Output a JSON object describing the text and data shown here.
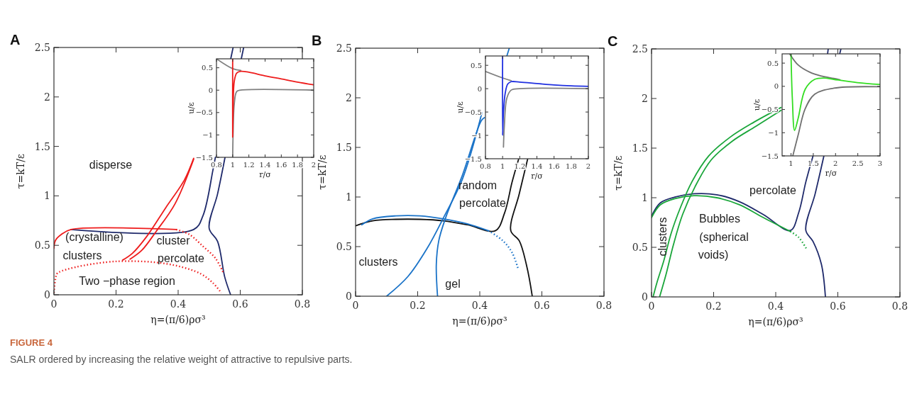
{
  "chart_data": [
    {
      "type": "line",
      "title": "A",
      "xlabel": "η=(π/6)ρσ³",
      "ylabel": "τ=kT/ε",
      "xlim": [
        0,
        0.8
      ],
      "ylim": [
        0,
        2.5
      ],
      "xticks": [
        0,
        0.2,
        0.4,
        0.6,
        0.8
      ],
      "yticks": [
        0,
        0.5,
        1,
        1.5,
        2,
        2.5
      ],
      "grid": false,
      "series": [
        {
          "color": "#1f2a6b",
          "x": [
            0.055,
            0.45,
            0.48,
            0.512,
            0.52,
            null,
            0.569,
            0.577
          ],
          "values": [
            0.66,
            0.66,
            0.8,
            1.26,
            1.39,
            null,
            2.38,
            2.5
          ]
        },
        {
          "color": "#1f2a6b",
          "x": [
            0.611,
            0.603,
            null,
            0.551,
            0.527,
            0.5,
            0.527,
            0.55,
            0.569
          ],
          "values": [
            2.5,
            2.38,
            null,
            1.39,
            1.02,
            0.67,
            0.54,
            0.18,
            0
          ]
        },
        {
          "color": "#ee1c1c",
          "x": [
            0,
            0.005,
            0.024,
            0.055,
            0.394
          ],
          "values": [
            0.47,
            0.55,
            0.61,
            0.66,
            0.66
          ]
        },
        {
          "color": "#ee1c1c",
          "line_style": "dotted",
          "x": [
            0.394,
            0.436,
            0.48,
            0.52,
            0.546
          ],
          "values": [
            0.66,
            0.61,
            0.49,
            0.37,
            0.22
          ]
        },
        {
          "color": "#ee1c1c",
          "line_style": "dotted",
          "x": [
            0,
            0.009,
            0.017,
            0.07,
            0.169,
            0.23,
            0.32,
            0.4,
            0.474,
            0.512,
            0.539
          ],
          "values": [
            0.02,
            0.21,
            0.23,
            0.28,
            0.33,
            0.34,
            0.33,
            0.29,
            0.21,
            0.12,
            0.02
          ]
        },
        {
          "color": "#ee1c1c",
          "x": [
            0.221,
            0.253,
            0.299,
            0.36,
            0.42,
            0.45
          ],
          "values": [
            0.35,
            0.42,
            0.59,
            0.88,
            1.16,
            1.38
          ]
        },
        {
          "color": "#ee1c1c",
          "x": [
            0.245,
            0.283,
            0.329,
            0.39,
            0.45
          ],
          "values": [
            0.36,
            0.45,
            0.64,
            0.92,
            1.37
          ]
        }
      ],
      "annotations": [
        "disperse",
        "(crystalline)",
        "clusters",
        "cluster",
        "percolate",
        "Two −phase region",
        "FIGURE 4",
        "SALR ordered by increasing the relative weight of attractive to repulsive parts."
      ]
    },
    {
      "type": "line",
      "xlabel": "r/σ",
      "ylabel": "u/ε",
      "xlim": [
        0.8,
        2
      ],
      "ylim": [
        -1.5,
        0.7
      ],
      "xticks": [
        0.8,
        1,
        1.2,
        1.4,
        1.6,
        1.8,
        2
      ],
      "yticks": [
        {
          "value": -1.5,
          "label": "−1.5"
        },
        {
          "value": -1,
          "label": "−1"
        },
        {
          "value": -0.5,
          "label": "−0.5"
        },
        0,
        0.5
      ],
      "grid": false,
      "series": [
        {
          "color": "#808080",
          "x": [
            0.8,
            1.0,
            1.1
          ],
          "values": [
            0.7,
            0.48,
            0.44
          ]
        },
        {
          "color": "#808080",
          "x": [
            1.0,
            1.005,
            1.02,
            1.05,
            1.1,
            2.0
          ],
          "values": [
            -1.5,
            -1.0,
            -0.3,
            -0.03,
            0,
            0
          ]
        },
        {
          "color": "#ee1c1c",
          "x": [
            1.0,
            1.0,
            1.005,
            1.02,
            1.05,
            1.1,
            1.2,
            1.4,
            1.6,
            1.8,
            2.0
          ],
          "values": [
            0.7,
            -1.05,
            -0.5,
            0.2,
            0.38,
            0.42,
            0.4,
            0.32,
            0.25,
            0.18,
            0.12
          ]
        }
      ]
    },
    {
      "type": "line",
      "title": "B",
      "xlabel": "η=(π/6)ρσ³",
      "ylabel": "τ=kT/ε",
      "xlim": [
        0,
        0.8
      ],
      "ylim": [
        0,
        2.5
      ],
      "xticks": [
        0,
        0.2,
        0.4,
        0.6,
        0.8
      ],
      "yticks": [
        0,
        0.5,
        1,
        1.5,
        2,
        2.5
      ],
      "grid": false,
      "series": [
        {
          "color": "#111111",
          "x": [
            0,
            0.055,
            0.13,
            0.207,
            0.283,
            0.36,
            0.45,
            0.48,
            0.504,
            0.525
          ],
          "values": [
            0.71,
            0.76,
            0.775,
            0.775,
            0.76,
            0.72,
            0.66,
            0.84,
            1.15,
            1.38
          ]
        },
        {
          "color": "#111111",
          "x": [
            0.554,
            0.527,
            0.5,
            0.527,
            0.55,
            0.569
          ],
          "values": [
            1.38,
            1.03,
            0.66,
            0.56,
            0.32,
            0
          ]
        },
        {
          "color": "#1a73c8",
          "x": [
            0.02,
            0.055,
            0.13,
            0.207,
            0.283,
            0.36,
            0.428
          ],
          "values": [
            0.72,
            0.78,
            0.81,
            0.81,
            0.78,
            0.73,
            0.66
          ]
        },
        {
          "color": "#1a73c8",
          "line_style": "dotted",
          "x": [
            0.428,
            0.474,
            0.504,
            0.524
          ],
          "values": [
            0.66,
            0.56,
            0.44,
            0.27
          ]
        },
        {
          "color": "#1a73c8",
          "x": [
            0.1,
            0.169,
            0.23,
            0.283,
            0.344,
            0.407
          ],
          "values": [
            0,
            0.2,
            0.48,
            0.79,
            1.18,
            1.85
          ]
        },
        {
          "color": "#1a73c8",
          "x": [
            0.264,
            0.26,
            0.268,
            0.29,
            0.344,
            0.405,
            0.415,
            null,
            0.487,
            0.495
          ],
          "values": [
            0,
            0.32,
            0.56,
            0.79,
            1.22,
            1.77,
            1.8,
            null,
            2.42,
            2.5
          ]
        }
      ],
      "annotations": [
        "random",
        "percolate",
        "clusters",
        "gel"
      ]
    },
    {
      "type": "line",
      "xlabel": "r/σ",
      "ylabel": "u/ε",
      "xlim": [
        0.8,
        2
      ],
      "ylim": [
        -1.5,
        0.7
      ],
      "xticks": [
        0.8,
        1,
        1.2,
        1.4,
        1.6,
        1.8,
        2
      ],
      "yticks": [
        {
          "value": -1.5,
          "label": "−1.5"
        },
        {
          "value": -1,
          "label": "−1"
        },
        {
          "value": -0.5,
          "label": "−0.5"
        },
        0,
        0.5
      ],
      "grid": false,
      "series": [
        {
          "color": "#808080",
          "x": [
            0.8,
            1.0,
            1.1
          ],
          "values": [
            0.37,
            0.23,
            0.17
          ]
        },
        {
          "color": "#808080",
          "x": [
            1.01,
            1.02,
            1.05,
            1.1,
            1.2,
            2.0
          ],
          "values": [
            -1.25,
            -0.8,
            -0.2,
            -0.03,
            0,
            0
          ]
        },
        {
          "color": "#2030e0",
          "x": [
            1.0,
            1.0,
            1.01,
            1.03,
            1.06,
            1.1,
            1.2,
            1.4,
            1.6,
            1.8,
            2.0
          ],
          "values": [
            0.7,
            -1.0,
            -0.5,
            -0.1,
            0.1,
            0.15,
            0.14,
            0.11,
            0.08,
            0.06,
            0.05
          ]
        }
      ]
    },
    {
      "type": "line",
      "title": "C",
      "xlabel": "η=(π/6)ρσ³",
      "ylabel": "τ=kT/ε",
      "xlim": [
        0,
        0.8
      ],
      "ylim": [
        0,
        2.5
      ],
      "xticks": [
        0,
        0.2,
        0.4,
        0.6,
        0.8
      ],
      "yticks": [
        0,
        0.5,
        1,
        1.5,
        2,
        2.5
      ],
      "grid": false,
      "series": [
        {
          "color": "#1f2a6b",
          "x": [
            0,
            0.029,
            0.075,
            0.137,
            0.21,
            0.283,
            0.36,
            0.447,
            0.474,
            0.497,
            0.52,
            null,
            0.567,
            0.569
          ],
          "values": [
            0.815,
            0.95,
            1.006,
            1.04,
            1.03,
            0.96,
            0.83,
            0.67,
            0.85,
            1.16,
            1.42,
            null,
            2.45,
            2.5
          ]
        },
        {
          "color": "#1f2a6b",
          "x": [
            0.61,
            0.606,
            null,
            0.555,
            0.527,
            0.497,
            0.52,
            0.547,
            0.56
          ],
          "values": [
            2.5,
            2.45,
            null,
            1.42,
            1.04,
            0.67,
            0.56,
            0.33,
            0
          ]
        },
        {
          "color": "#1aa63a",
          "x": [
            0,
            0.029,
            0.075,
            0.137,
            0.21,
            0.283,
            0.36,
            0.447
          ],
          "values": [
            0.8,
            0.93,
            0.99,
            1.02,
            1.0,
            0.93,
            0.8,
            0.66
          ]
        },
        {
          "color": "#1aa63a",
          "line_style": "dotted",
          "x": [
            0.447,
            0.474,
            0.5
          ],
          "values": [
            0.66,
            0.6,
            0.48
          ]
        },
        {
          "color": "#1aa63a",
          "x": [
            0.005,
            0.017,
            0.04,
            0.063,
            0.093,
            0.13,
            0.184,
            0.253,
            0.329,
            0.417
          ],
          "values": [
            0,
            0.14,
            0.37,
            0.64,
            0.9,
            1.16,
            1.42,
            1.61,
            1.76,
            1.91
          ]
        },
        {
          "color": "#1aa63a",
          "x": [
            0.026,
            0.047,
            0.07,
            0.1,
            0.14,
            0.192,
            0.26,
            0.336,
            0.417
          ],
          "values": [
            0,
            0.23,
            0.52,
            0.83,
            1.11,
            1.38,
            1.57,
            1.72,
            1.88
          ]
        }
      ],
      "annotations": [
        "percolate",
        "Bubbles",
        "(spherical",
        "voids)",
        "clusters"
      ]
    },
    {
      "type": "line",
      "xlabel": "r/σ",
      "ylabel": "u/ε",
      "xlim": [
        0.8,
        3
      ],
      "ylim": [
        -1.5,
        0.7
      ],
      "xticks": [
        1,
        1.5,
        2,
        2.5,
        3
      ],
      "yticks": [
        {
          "value": -1.5,
          "label": "−1.5"
        },
        {
          "value": -1,
          "label": "−1"
        },
        {
          "value": -0.5,
          "label": "−0.5"
        },
        0,
        0.5
      ],
      "grid": false,
      "series": [
        {
          "color": "#707070",
          "x": [
            0.97,
            1.16,
            1.43,
            1.69,
            1.96,
            2.1
          ],
          "values": [
            0.7,
            0.46,
            0.3,
            0.22,
            0.17,
            0.14
          ]
        },
        {
          "color": "#707070",
          "x": [
            1.04,
            1.16,
            1.32,
            1.53,
            1.96,
            3.0
          ],
          "values": [
            -1.5,
            -1.05,
            -0.48,
            -0.17,
            -0.04,
            -0.01
          ]
        },
        {
          "color": "#33dd22",
          "x": [
            1.0,
            1.03,
            1.08,
            1.16,
            1.32,
            1.53,
            1.75,
            1.96,
            2.49,
            3.0
          ],
          "values": [
            0.69,
            -0.27,
            -0.95,
            -0.69,
            -0.06,
            0.15,
            0.18,
            0.15,
            0.08,
            0.04
          ]
        }
      ]
    }
  ]
}
